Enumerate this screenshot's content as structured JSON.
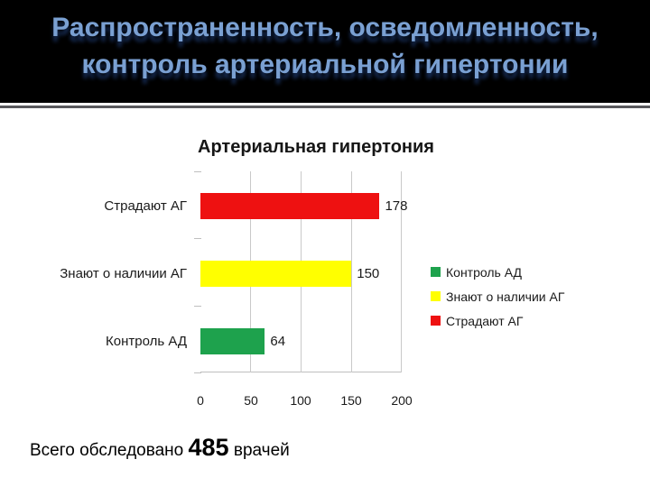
{
  "header": {
    "title_line1": "Распространенность, осведомленность,",
    "title_line2": "контроль артериальной гипертонии",
    "title_color": "#7AA0D2",
    "background_color": "#000000"
  },
  "chart_data": {
    "type": "bar",
    "orientation": "horizontal",
    "title": "Артериальная гипертония",
    "categories": [
      "Страдают АГ",
      "Знают о наличии АГ",
      "Контроль АД"
    ],
    "values": [
      178,
      150,
      64
    ],
    "value_labels": [
      "178",
      "150",
      "64"
    ],
    "colors": [
      "#EE1111",
      "#FFFF00",
      "#1EA24D"
    ],
    "xlim": [
      0,
      200
    ],
    "x_ticks": [
      "0",
      "50",
      "100",
      "150",
      "200"
    ],
    "grid": true,
    "legend_position": "right",
    "legend": [
      {
        "label": "Контроль АД",
        "color": "#1EA24D"
      },
      {
        "label": "Знают о наличии АГ",
        "color": "#FFFF00"
      },
      {
        "label": "Страдают АГ",
        "color": "#EE1111"
      }
    ]
  },
  "caption": {
    "prefix": "Всего обследовано ",
    "number": "485",
    "suffix": " врачей"
  }
}
